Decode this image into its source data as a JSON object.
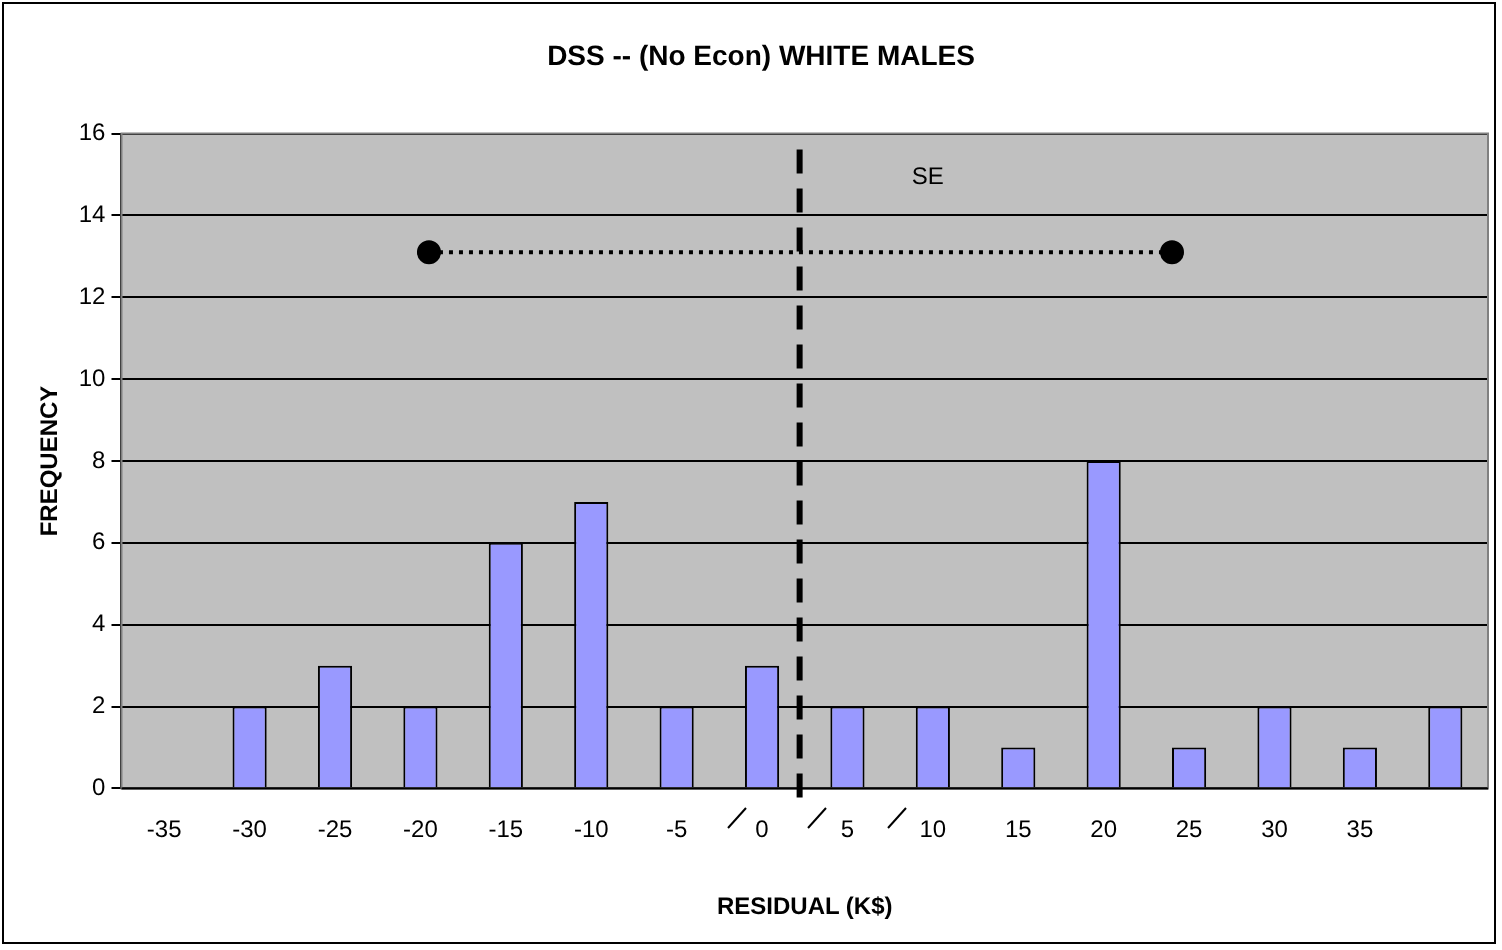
{
  "chart_data": {
    "type": "bar",
    "title": "DSS -- (No Econ) WHITE MALES",
    "xlabel": "RESIDUAL (K$)",
    "ylabel": "FREQUENCY",
    "x": [
      -35,
      -30,
      -25,
      -20,
      -15,
      -10,
      -5,
      0,
      5,
      10,
      15,
      20,
      25,
      30,
      35,
      40
    ],
    "series": [
      {
        "color": "#9999ff",
        "values": [
          0,
          2,
          3,
          2,
          6,
          7,
          2,
          3,
          2,
          2,
          1,
          8,
          1,
          2,
          1,
          2
        ]
      },
      {
        "type": "line",
        "color": "#000000",
        "x": [
          -19.5,
          24
        ],
        "values": [
          13.1,
          13.1
        ],
        "marker": "circle",
        "line_style": "dotted"
      }
    ],
    "xlim": [
      -37.5,
      42.5
    ],
    "xticks": [
      -35,
      -30,
      -25,
      -20,
      -15,
      -10,
      -5,
      0,
      5,
      10,
      15,
      20,
      25,
      30,
      35
    ],
    "ylim": [
      0,
      16
    ],
    "yticks": [
      0,
      2,
      4,
      6,
      8,
      10,
      12,
      14,
      16
    ],
    "grid": "y",
    "ref_lines": [
      {
        "axis": "x",
        "value": 2.2,
        "color": "#000000",
        "line_style": "dashed"
      }
    ],
    "annotations": [
      "SE"
    ]
  }
}
